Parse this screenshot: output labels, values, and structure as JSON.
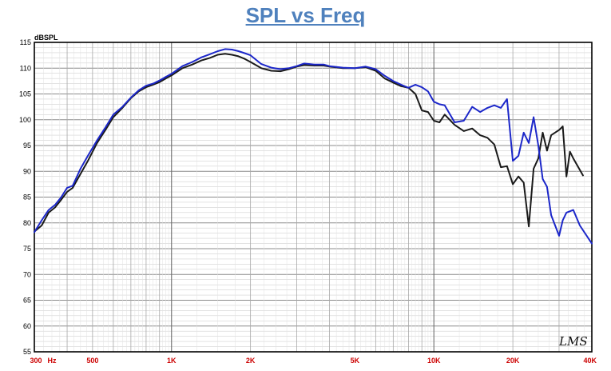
{
  "chart_data": {
    "type": "line",
    "title": "SPL vs Freq",
    "ylabel": "dBSPL",
    "xscale": "log",
    "xlim": [
      300,
      40000
    ],
    "ylim": [
      55,
      115
    ],
    "grid": true,
    "yticks": [
      115,
      110,
      105,
      100,
      95,
      90,
      85,
      80,
      75,
      70,
      65,
      60,
      55
    ],
    "xtick_labels": [
      {
        "value": 300,
        "label": "300"
      },
      {
        "value": 350,
        "label": "Hz"
      },
      {
        "value": 500,
        "label": "500"
      },
      {
        "value": 1000,
        "label": "1K"
      },
      {
        "value": 2000,
        "label": "2K"
      },
      {
        "value": 5000,
        "label": "5K"
      },
      {
        "value": 10000,
        "label": "10K"
      },
      {
        "value": 20000,
        "label": "20K"
      },
      {
        "value": 40000,
        "label": "40K"
      }
    ],
    "series": [
      {
        "color": "#1a1a1a",
        "points": [
          [
            300,
            78.3
          ],
          [
            320,
            79.5
          ],
          [
            340,
            82
          ],
          [
            360,
            83
          ],
          [
            380,
            84.5
          ],
          [
            400,
            86
          ],
          [
            420,
            86.8
          ],
          [
            450,
            89.5
          ],
          [
            480,
            92
          ],
          [
            520,
            95.5
          ],
          [
            560,
            98
          ],
          [
            600,
            100.5
          ],
          [
            650,
            102.3
          ],
          [
            700,
            104.2
          ],
          [
            750,
            105.5
          ],
          [
            800,
            106.3
          ],
          [
            850,
            106.8
          ],
          [
            900,
            107.3
          ],
          [
            950,
            108
          ],
          [
            1000,
            108.6
          ],
          [
            1100,
            110
          ],
          [
            1200,
            110.7
          ],
          [
            1300,
            111.5
          ],
          [
            1400,
            112
          ],
          [
            1500,
            112.6
          ],
          [
            1600,
            112.8
          ],
          [
            1700,
            112.6
          ],
          [
            1800,
            112.3
          ],
          [
            1900,
            111.8
          ],
          [
            2000,
            111.2
          ],
          [
            2200,
            110
          ],
          [
            2400,
            109.5
          ],
          [
            2600,
            109.4
          ],
          [
            2800,
            109.8
          ],
          [
            3000,
            110.3
          ],
          [
            3200,
            110.6
          ],
          [
            3500,
            110.5
          ],
          [
            3800,
            110.5
          ],
          [
            4000,
            110.3
          ],
          [
            4500,
            110
          ],
          [
            5000,
            110
          ],
          [
            5500,
            110.2
          ],
          [
            6000,
            109.5
          ],
          [
            6500,
            108
          ],
          [
            7000,
            107.2
          ],
          [
            7500,
            106.5
          ],
          [
            8000,
            106.2
          ],
          [
            8500,
            105
          ],
          [
            9000,
            101.8
          ],
          [
            9500,
            101.5
          ],
          [
            10000,
            99.8
          ],
          [
            10500,
            99.5
          ],
          [
            11000,
            101
          ],
          [
            12000,
            99
          ],
          [
            13000,
            97.8
          ],
          [
            14000,
            98.3
          ],
          [
            15000,
            97
          ],
          [
            16000,
            96.5
          ],
          [
            17000,
            95.2
          ],
          [
            18000,
            90.8
          ],
          [
            19000,
            91
          ],
          [
            20000,
            87.5
          ],
          [
            21000,
            89
          ],
          [
            22000,
            87.8
          ],
          [
            23000,
            79.3
          ],
          [
            24000,
            90.5
          ],
          [
            25000,
            92.5
          ],
          [
            26000,
            97.5
          ],
          [
            27000,
            94
          ],
          [
            28000,
            97
          ],
          [
            30000,
            98
          ],
          [
            31000,
            98.7
          ],
          [
            32000,
            89
          ],
          [
            33000,
            93.8
          ],
          [
            34000,
            92.5
          ],
          [
            37000,
            89.2
          ]
        ]
      },
      {
        "color": "#1c27c9",
        "points": [
          [
            300,
            78.2
          ],
          [
            320,
            80.5
          ],
          [
            340,
            82.5
          ],
          [
            360,
            83.5
          ],
          [
            380,
            85
          ],
          [
            400,
            86.8
          ],
          [
            420,
            87.2
          ],
          [
            450,
            90.5
          ],
          [
            480,
            93
          ],
          [
            520,
            96
          ],
          [
            560,
            98.5
          ],
          [
            600,
            101
          ],
          [
            650,
            102.5
          ],
          [
            700,
            104.3
          ],
          [
            750,
            105.7
          ],
          [
            800,
            106.6
          ],
          [
            850,
            107
          ],
          [
            900,
            107.6
          ],
          [
            950,
            108.3
          ],
          [
            1000,
            108.9
          ],
          [
            1100,
            110.4
          ],
          [
            1200,
            111.2
          ],
          [
            1300,
            112.1
          ],
          [
            1400,
            112.7
          ],
          [
            1500,
            113.3
          ],
          [
            1600,
            113.7
          ],
          [
            1700,
            113.6
          ],
          [
            1800,
            113.3
          ],
          [
            1900,
            112.9
          ],
          [
            2000,
            112.5
          ],
          [
            2200,
            110.8
          ],
          [
            2400,
            110.1
          ],
          [
            2600,
            109.8
          ],
          [
            2800,
            110
          ],
          [
            3000,
            110.4
          ],
          [
            3200,
            110.9
          ],
          [
            3500,
            110.7
          ],
          [
            3800,
            110.7
          ],
          [
            4000,
            110.4
          ],
          [
            4500,
            110.1
          ],
          [
            5000,
            110
          ],
          [
            5500,
            110.3
          ],
          [
            6000,
            109.8
          ],
          [
            6500,
            108.5
          ],
          [
            7000,
            107.5
          ],
          [
            7500,
            106.8
          ],
          [
            8000,
            106.2
          ],
          [
            8500,
            106.8
          ],
          [
            9000,
            106.3
          ],
          [
            9500,
            105.5
          ],
          [
            10000,
            103.5
          ],
          [
            10500,
            103
          ],
          [
            11000,
            102.8
          ],
          [
            12000,
            99.5
          ],
          [
            13000,
            99.8
          ],
          [
            14000,
            102.5
          ],
          [
            15000,
            101.5
          ],
          [
            16000,
            102.3
          ],
          [
            17000,
            102.8
          ],
          [
            18000,
            102.3
          ],
          [
            19000,
            104
          ],
          [
            20000,
            92
          ],
          [
            21000,
            93
          ],
          [
            22000,
            97.5
          ],
          [
            23000,
            95.5
          ],
          [
            24000,
            100.5
          ],
          [
            25000,
            95
          ],
          [
            26000,
            88.5
          ],
          [
            27000,
            87
          ],
          [
            28000,
            81.5
          ],
          [
            30000,
            77.5
          ],
          [
            31000,
            80.5
          ],
          [
            32000,
            82
          ],
          [
            34000,
            82.5
          ],
          [
            36000,
            79.5
          ],
          [
            40000,
            76
          ]
        ]
      }
    ]
  },
  "logo_text": "LMS"
}
